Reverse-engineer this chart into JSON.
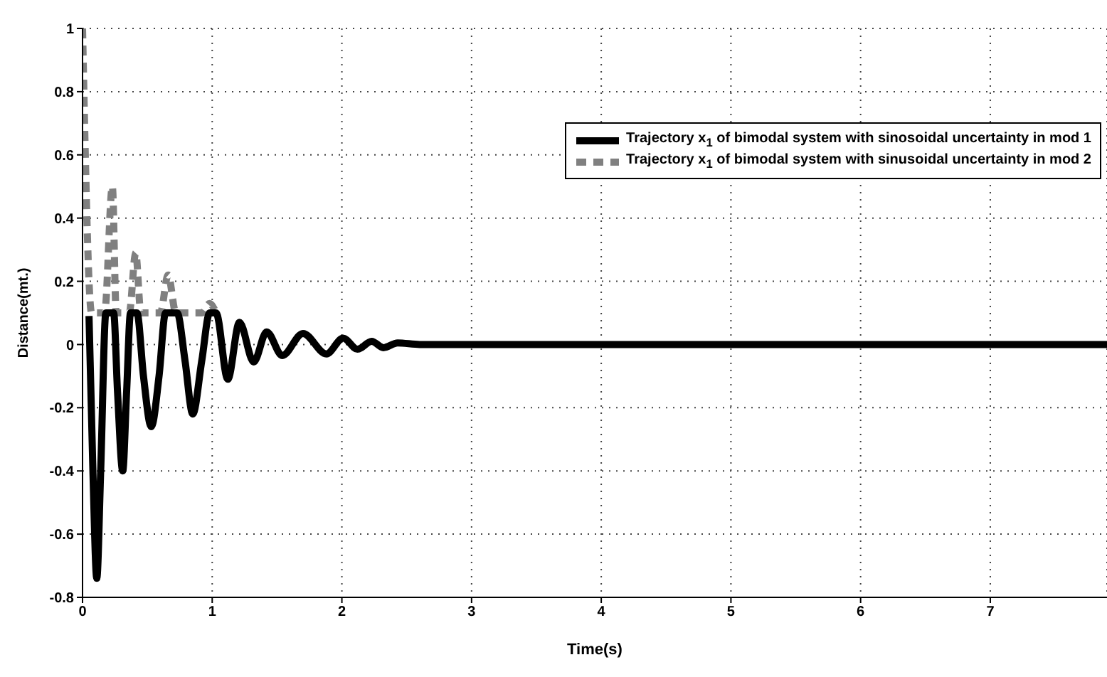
{
  "chart_data": {
    "type": "line",
    "xlabel": "Time(s)",
    "ylabel": "Distance(mt.)",
    "xlim": [
      0,
      7.9
    ],
    "xticks": [
      0,
      1,
      2,
      3,
      4,
      5,
      6,
      7
    ],
    "ylim": [
      -0.8,
      1
    ],
    "yticks": [
      -0.8,
      -0.6,
      -0.4,
      -0.2,
      0,
      0.2,
      0.4,
      0.6,
      0.8,
      1
    ],
    "grid": true,
    "legend": "top right",
    "marker": "none",
    "series": [
      {
        "name": "Trajectory x$_{1}$ of bimodal system with sinosoidal uncertainty in mod 1",
        "color": "#000000",
        "line_style": "solid",
        "x": [
          0.05,
          0.08,
          0.11,
          0.14,
          0.18,
          0.24,
          0.27,
          0.31,
          0.34,
          0.37,
          0.42,
          0.47,
          0.53,
          0.59,
          0.64,
          0.73,
          0.79,
          0.85,
          0.92,
          0.98,
          1.03,
          1.12,
          1.21,
          1.32,
          1.42,
          1.54,
          1.7,
          1.88,
          2.01,
          2.12,
          2.23,
          2.32,
          2.43,
          2.6,
          7.9
        ],
        "values": [
          0.09,
          -0.4,
          -0.74,
          -0.4,
          0.1,
          0.1,
          -0.15,
          -0.4,
          -0.15,
          0.1,
          0.1,
          -0.1,
          -0.26,
          -0.1,
          0.1,
          0.1,
          -0.05,
          -0.22,
          -0.05,
          0.1,
          0.1,
          -0.11,
          0.07,
          -0.055,
          0.04,
          -0.035,
          0.035,
          -0.03,
          0.02,
          -0.015,
          0.01,
          -0.01,
          0.005,
          0,
          0
        ]
      },
      {
        "name": "Trajectory x$_{1}$ of bimodal system with sinusoidal uncertainty in mod 2",
        "color": "#808080",
        "line_style": "dashed",
        "x": [
          0,
          0.07,
          0.17,
          0.23,
          0.26,
          0.36,
          0.41,
          0.45,
          0.6,
          0.66,
          0.72,
          0.92,
          0.98,
          1.03
        ],
        "values": [
          1,
          0.1,
          0.1,
          0.5,
          0.1,
          0.1,
          0.29,
          0.1,
          0.1,
          0.22,
          0.1,
          0.1,
          0.13,
          0.1
        ]
      }
    ]
  }
}
